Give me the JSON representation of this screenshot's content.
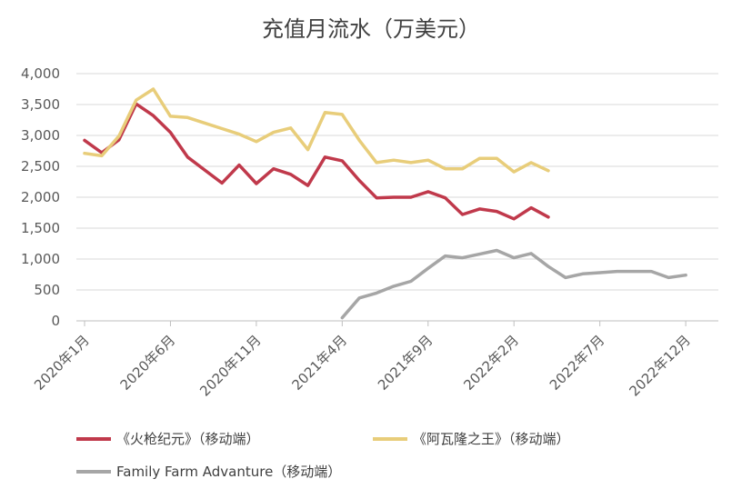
{
  "chart_data": {
    "type": "line",
    "title": "充值月流水（万美元）",
    "ylim": [
      0,
      4000
    ],
    "yticks": [
      0,
      500,
      1000,
      1500,
      2000,
      2500,
      3000,
      3500,
      4000
    ],
    "ytick_labels": [
      "0",
      "500",
      "1,000",
      "1,500",
      "2,000",
      "2,500",
      "3,000",
      "3,500",
      "4,000"
    ],
    "xticks": [
      "2020-01",
      "2020-06",
      "2020-11",
      "2021-04",
      "2021-09",
      "2022-02",
      "2022-07",
      "2022-12"
    ],
    "xtick_labels": [
      "2020年1月",
      "2020年6月",
      "2020年11月",
      "2021年4月",
      "2021年9月",
      "2022年2月",
      "2022年7月",
      "2022年12月"
    ],
    "grid": true,
    "legend_position": "bottom",
    "series": [
      {
        "name": "《火枪纪元》（移动端）",
        "color": "#C0394B",
        "x": [
          "2020-01",
          "2020-02",
          "2020-03",
          "2020-04",
          "2020-05",
          "2020-06",
          "2020-07",
          "2020-08",
          "2020-09",
          "2020-10",
          "2020-11",
          "2020-12",
          "2021-01",
          "2021-02",
          "2021-03",
          "2021-04",
          "2021-05",
          "2021-06",
          "2021-07",
          "2021-08",
          "2021-09",
          "2021-10",
          "2021-11",
          "2021-12",
          "2022-01",
          "2022-02",
          "2022-03",
          "2022-04",
          "2022-05"
        ],
        "values": [
          2920,
          2720,
          2930,
          3510,
          3320,
          3050,
          2650,
          2440,
          2230,
          2520,
          2220,
          2460,
          2370,
          2190,
          2650,
          2590,
          2270,
          1990,
          2000,
          2000,
          2090,
          1990,
          1720,
          1810,
          1770,
          1650,
          1830,
          1680,
          null
        ]
      },
      {
        "name": "《阿瓦隆之王》（移动端）",
        "color": "#E8CD7A",
        "x": [
          "2020-01",
          "2020-02",
          "2020-03",
          "2020-04",
          "2020-05",
          "2020-06",
          "2020-07",
          "2020-08",
          "2020-09",
          "2020-10",
          "2020-11",
          "2020-12",
          "2021-01",
          "2021-02",
          "2021-03",
          "2021-04",
          "2021-05",
          "2021-06",
          "2021-07",
          "2021-08",
          "2021-09",
          "2021-10",
          "2021-11",
          "2021-12",
          "2022-01",
          "2022-02",
          "2022-03",
          "2022-04"
        ],
        "values": [
          2710,
          2670,
          2990,
          3570,
          3750,
          3310,
          3290,
          3200,
          3110,
          3020,
          2900,
          3050,
          3120,
          2770,
          3370,
          3340,
          2920,
          2560,
          2600,
          2560,
          2600,
          2460,
          2460,
          2630,
          2630,
          2410,
          2560,
          2430
        ]
      },
      {
        "name": "Family Farm Advanture（移动端）",
        "color": "#A6A6A6",
        "x": [
          "2021-04",
          "2021-05",
          "2021-06",
          "2021-07",
          "2021-08",
          "2021-09",
          "2021-10",
          "2021-11",
          "2021-12",
          "2022-01",
          "2022-02",
          "2022-03",
          "2022-04",
          "2022-05",
          "2022-06",
          "2022-07",
          "2022-08",
          "2022-09",
          "2022-10",
          "2022-11",
          "2022-12"
        ],
        "values": [
          50,
          370,
          450,
          560,
          640,
          850,
          1050,
          1020,
          1080,
          1140,
          1020,
          1090,
          880,
          700,
          760,
          780,
          800,
          800,
          800,
          700,
          740
        ]
      }
    ]
  }
}
